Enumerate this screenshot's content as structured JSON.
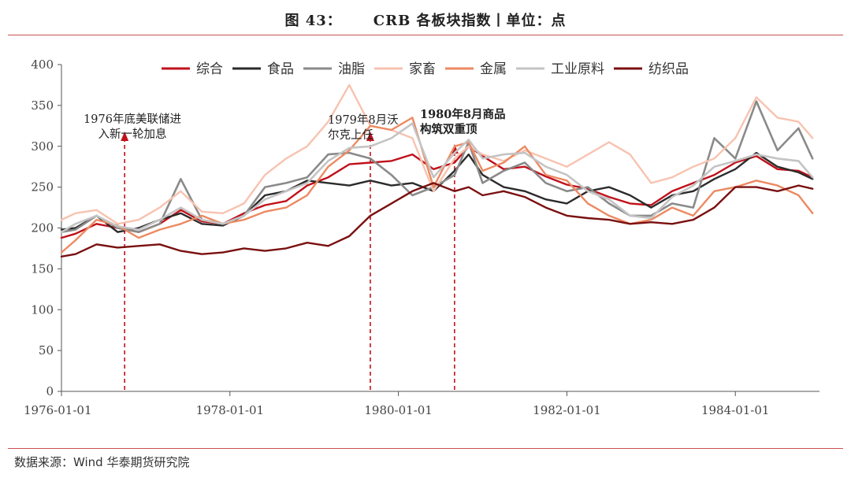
{
  "figure": {
    "number": "图 43：",
    "title": "CRB 各板块指数丨单位：点"
  },
  "source": "数据来源：Wind 华泰期货研究院",
  "chart_data": {
    "type": "line",
    "ylim": [
      0,
      400
    ],
    "yticks": [
      0,
      50,
      100,
      150,
      200,
      250,
      300,
      350,
      400
    ],
    "xlim": [
      "1976-01-01",
      "1984-12-31"
    ],
    "xticks": [
      "1976-01-01",
      "1978-01-01",
      "1980-01-01",
      "1982-01-01",
      "1984-01-01"
    ],
    "legend_position": "top",
    "series": [
      {
        "name": "综合",
        "color": "#c0111b",
        "width": 2.4,
        "points": [
          [
            "1976-01",
            188
          ],
          [
            "1976-03",
            193
          ],
          [
            "1976-06",
            205
          ],
          [
            "1976-09",
            200
          ],
          [
            "1976-12",
            195
          ],
          [
            "1977-03",
            205
          ],
          [
            "1977-06",
            222
          ],
          [
            "1977-09",
            208
          ],
          [
            "1977-12",
            205
          ],
          [
            "1978-03",
            218
          ],
          [
            "1978-06",
            228
          ],
          [
            "1978-09",
            233
          ],
          [
            "1978-12",
            252
          ],
          [
            "1979-03",
            262
          ],
          [
            "1979-06",
            278
          ],
          [
            "1979-09",
            280
          ],
          [
            "1979-12",
            282
          ],
          [
            "1980-03",
            290
          ],
          [
            "1980-06",
            272
          ],
          [
            "1980-09",
            280
          ],
          [
            "1980-11",
            300
          ],
          [
            "1981-01",
            288
          ],
          [
            "1981-04",
            272
          ],
          [
            "1981-07",
            275
          ],
          [
            "1981-10",
            263
          ],
          [
            "1982-01",
            253
          ],
          [
            "1982-04",
            248
          ],
          [
            "1982-07",
            238
          ],
          [
            "1982-10",
            230
          ],
          [
            "1983-01",
            228
          ],
          [
            "1983-04",
            245
          ],
          [
            "1983-07",
            255
          ],
          [
            "1983-10",
            265
          ],
          [
            "1984-01",
            280
          ],
          [
            "1984-04",
            288
          ],
          [
            "1984-07",
            272
          ],
          [
            "1984-10",
            270
          ],
          [
            "1984-12",
            262
          ]
        ]
      },
      {
        "name": "食品",
        "color": "#2b2b2b",
        "width": 2.4,
        "points": [
          [
            "1976-01",
            198
          ],
          [
            "1976-03",
            200
          ],
          [
            "1976-06",
            215
          ],
          [
            "1976-09",
            195
          ],
          [
            "1976-12",
            200
          ],
          [
            "1977-03",
            210
          ],
          [
            "1977-06",
            218
          ],
          [
            "1977-09",
            205
          ],
          [
            "1977-12",
            203
          ],
          [
            "1978-03",
            215
          ],
          [
            "1978-06",
            240
          ],
          [
            "1978-09",
            245
          ],
          [
            "1978-12",
            258
          ],
          [
            "1979-03",
            255
          ],
          [
            "1979-06",
            252
          ],
          [
            "1979-09",
            258
          ],
          [
            "1979-12",
            252
          ],
          [
            "1980-03",
            255
          ],
          [
            "1980-06",
            245
          ],
          [
            "1980-09",
            270
          ],
          [
            "1980-11",
            290
          ],
          [
            "1981-01",
            265
          ],
          [
            "1981-04",
            250
          ],
          [
            "1981-07",
            245
          ],
          [
            "1981-10",
            235
          ],
          [
            "1982-01",
            230
          ],
          [
            "1982-04",
            245
          ],
          [
            "1982-07",
            250
          ],
          [
            "1982-10",
            240
          ],
          [
            "1983-01",
            225
          ],
          [
            "1983-04",
            240
          ],
          [
            "1983-07",
            245
          ],
          [
            "1983-10",
            260
          ],
          [
            "1984-01",
            272
          ],
          [
            "1984-04",
            292
          ],
          [
            "1984-07",
            275
          ],
          [
            "1984-10",
            268
          ],
          [
            "1984-12",
            260
          ]
        ]
      },
      {
        "name": "油脂",
        "color": "#8a8a8a",
        "width": 2.6,
        "points": [
          [
            "1976-01",
            195
          ],
          [
            "1976-03",
            198
          ],
          [
            "1976-06",
            215
          ],
          [
            "1976-09",
            200
          ],
          [
            "1976-12",
            195
          ],
          [
            "1977-03",
            205
          ],
          [
            "1977-06",
            260
          ],
          [
            "1977-09",
            210
          ],
          [
            "1977-12",
            205
          ],
          [
            "1978-03",
            215
          ],
          [
            "1978-06",
            250
          ],
          [
            "1978-09",
            255
          ],
          [
            "1978-12",
            262
          ],
          [
            "1979-03",
            290
          ],
          [
            "1979-06",
            292
          ],
          [
            "1979-09",
            285
          ],
          [
            "1979-12",
            265
          ],
          [
            "1980-03",
            240
          ],
          [
            "1980-06",
            250
          ],
          [
            "1980-09",
            265
          ],
          [
            "1980-11",
            305
          ],
          [
            "1981-01",
            255
          ],
          [
            "1981-04",
            270
          ],
          [
            "1981-07",
            280
          ],
          [
            "1981-10",
            255
          ],
          [
            "1982-01",
            245
          ],
          [
            "1982-04",
            250
          ],
          [
            "1982-07",
            230
          ],
          [
            "1982-10",
            215
          ],
          [
            "1983-01",
            215
          ],
          [
            "1983-04",
            230
          ],
          [
            "1983-07",
            225
          ],
          [
            "1983-10",
            310
          ],
          [
            "1984-01",
            285
          ],
          [
            "1984-04",
            355
          ],
          [
            "1984-07",
            295
          ],
          [
            "1984-10",
            322
          ],
          [
            "1984-12",
            285
          ]
        ]
      },
      {
        "name": "家畜",
        "color": "#f7c3b0",
        "width": 2.4,
        "points": [
          [
            "1976-01",
            210
          ],
          [
            "1976-03",
            218
          ],
          [
            "1976-06",
            222
          ],
          [
            "1976-09",
            205
          ],
          [
            "1976-12",
            210
          ],
          [
            "1977-03",
            225
          ],
          [
            "1977-06",
            245
          ],
          [
            "1977-09",
            220
          ],
          [
            "1977-12",
            218
          ],
          [
            "1978-03",
            230
          ],
          [
            "1978-06",
            265
          ],
          [
            "1978-09",
            285
          ],
          [
            "1978-12",
            300
          ],
          [
            "1979-03",
            330
          ],
          [
            "1979-06",
            375
          ],
          [
            "1979-09",
            325
          ],
          [
            "1979-12",
            320
          ],
          [
            "1980-03",
            310
          ],
          [
            "1980-06",
            245
          ],
          [
            "1980-09",
            285
          ],
          [
            "1980-11",
            300
          ],
          [
            "1981-01",
            290
          ],
          [
            "1981-04",
            282
          ],
          [
            "1981-07",
            295
          ],
          [
            "1981-10",
            285
          ],
          [
            "1982-01",
            275
          ],
          [
            "1982-04",
            290
          ],
          [
            "1982-07",
            305
          ],
          [
            "1982-10",
            290
          ],
          [
            "1983-01",
            255
          ],
          [
            "1983-04",
            262
          ],
          [
            "1983-07",
            275
          ],
          [
            "1983-10",
            285
          ],
          [
            "1984-01",
            310
          ],
          [
            "1984-04",
            360
          ],
          [
            "1984-07",
            335
          ],
          [
            "1984-10",
            330
          ],
          [
            "1984-12",
            310
          ]
        ]
      },
      {
        "name": "金属",
        "color": "#ec8a62",
        "width": 2.4,
        "points": [
          [
            "1976-01",
            170
          ],
          [
            "1976-03",
            185
          ],
          [
            "1976-06",
            210
          ],
          [
            "1976-09",
            203
          ],
          [
            "1976-12",
            188
          ],
          [
            "1977-03",
            198
          ],
          [
            "1977-06",
            205
          ],
          [
            "1977-09",
            215
          ],
          [
            "1977-12",
            205
          ],
          [
            "1978-03",
            210
          ],
          [
            "1978-06",
            220
          ],
          [
            "1978-09",
            225
          ],
          [
            "1978-12",
            240
          ],
          [
            "1979-03",
            275
          ],
          [
            "1979-06",
            295
          ],
          [
            "1979-09",
            325
          ],
          [
            "1979-12",
            320
          ],
          [
            "1980-03",
            335
          ],
          [
            "1980-06",
            250
          ],
          [
            "1980-09",
            300
          ],
          [
            "1980-11",
            305
          ],
          [
            "1981-01",
            270
          ],
          [
            "1981-04",
            280
          ],
          [
            "1981-07",
            300
          ],
          [
            "1981-10",
            265
          ],
          [
            "1982-01",
            258
          ],
          [
            "1982-04",
            230
          ],
          [
            "1982-07",
            215
          ],
          [
            "1982-10",
            205
          ],
          [
            "1983-01",
            210
          ],
          [
            "1983-04",
            225
          ],
          [
            "1983-07",
            215
          ],
          [
            "1983-10",
            245
          ],
          [
            "1984-01",
            250
          ],
          [
            "1984-04",
            258
          ],
          [
            "1984-07",
            252
          ],
          [
            "1984-10",
            240
          ],
          [
            "1984-12",
            218
          ]
        ]
      },
      {
        "name": "工业原料",
        "color": "#c4c4c4",
        "width": 2.6,
        "points": [
          [
            "1976-01",
            195
          ],
          [
            "1976-03",
            205
          ],
          [
            "1976-06",
            215
          ],
          [
            "1976-09",
            202
          ],
          [
            "1976-12",
            198
          ],
          [
            "1977-03",
            210
          ],
          [
            "1977-06",
            225
          ],
          [
            "1977-09",
            210
          ],
          [
            "1977-12",
            205
          ],
          [
            "1978-03",
            215
          ],
          [
            "1978-06",
            235
          ],
          [
            "1978-09",
            245
          ],
          [
            "1978-12",
            255
          ],
          [
            "1979-03",
            282
          ],
          [
            "1979-06",
            298
          ],
          [
            "1979-09",
            300
          ],
          [
            "1979-12",
            310
          ],
          [
            "1980-03",
            328
          ],
          [
            "1980-06",
            262
          ],
          [
            "1980-09",
            292
          ],
          [
            "1980-11",
            308
          ],
          [
            "1981-01",
            285
          ],
          [
            "1981-04",
            290
          ],
          [
            "1981-07",
            292
          ],
          [
            "1981-10",
            275
          ],
          [
            "1982-01",
            265
          ],
          [
            "1982-04",
            245
          ],
          [
            "1982-07",
            235
          ],
          [
            "1982-10",
            215
          ],
          [
            "1983-01",
            212
          ],
          [
            "1983-04",
            238
          ],
          [
            "1983-07",
            252
          ],
          [
            "1983-10",
            275
          ],
          [
            "1984-01",
            282
          ],
          [
            "1984-04",
            290
          ],
          [
            "1984-07",
            285
          ],
          [
            "1984-10",
            282
          ],
          [
            "1984-12",
            262
          ]
        ]
      },
      {
        "name": "纺织品",
        "color": "#7a1010",
        "width": 2.4,
        "points": [
          [
            "1976-01",
            165
          ],
          [
            "1976-03",
            168
          ],
          [
            "1976-06",
            180
          ],
          [
            "1976-09",
            176
          ],
          [
            "1976-12",
            178
          ],
          [
            "1977-03",
            180
          ],
          [
            "1977-06",
            172
          ],
          [
            "1977-09",
            168
          ],
          [
            "1977-12",
            170
          ],
          [
            "1978-03",
            175
          ],
          [
            "1978-06",
            172
          ],
          [
            "1978-09",
            175
          ],
          [
            "1978-12",
            182
          ],
          [
            "1979-03",
            178
          ],
          [
            "1979-06",
            190
          ],
          [
            "1979-09",
            215
          ],
          [
            "1979-12",
            230
          ],
          [
            "1980-03",
            245
          ],
          [
            "1980-06",
            255
          ],
          [
            "1980-09",
            245
          ],
          [
            "1980-11",
            250
          ],
          [
            "1981-01",
            240
          ],
          [
            "1981-04",
            245
          ],
          [
            "1981-07",
            238
          ],
          [
            "1981-10",
            225
          ],
          [
            "1982-01",
            215
          ],
          [
            "1982-04",
            212
          ],
          [
            "1982-07",
            210
          ],
          [
            "1982-10",
            205
          ],
          [
            "1983-01",
            207
          ],
          [
            "1983-04",
            205
          ],
          [
            "1983-07",
            210
          ],
          [
            "1983-10",
            225
          ],
          [
            "1984-01",
            250
          ],
          [
            "1984-04",
            250
          ],
          [
            "1984-07",
            245
          ],
          [
            "1984-10",
            252
          ],
          [
            "1984-12",
            248
          ]
        ]
      }
    ],
    "annotations": [
      {
        "date": "1976-10",
        "lines": [
          "1976年底美联储进",
          "入新一轮加息"
        ],
        "bold": false
      },
      {
        "date": "1979-09",
        "lines": [
          "1979年8月沃",
          "尔克上任"
        ],
        "bold": false
      },
      {
        "date": "1980-09",
        "lines": [
          "1980年8月商品",
          "构筑双重顶"
        ],
        "bold": true
      }
    ]
  }
}
